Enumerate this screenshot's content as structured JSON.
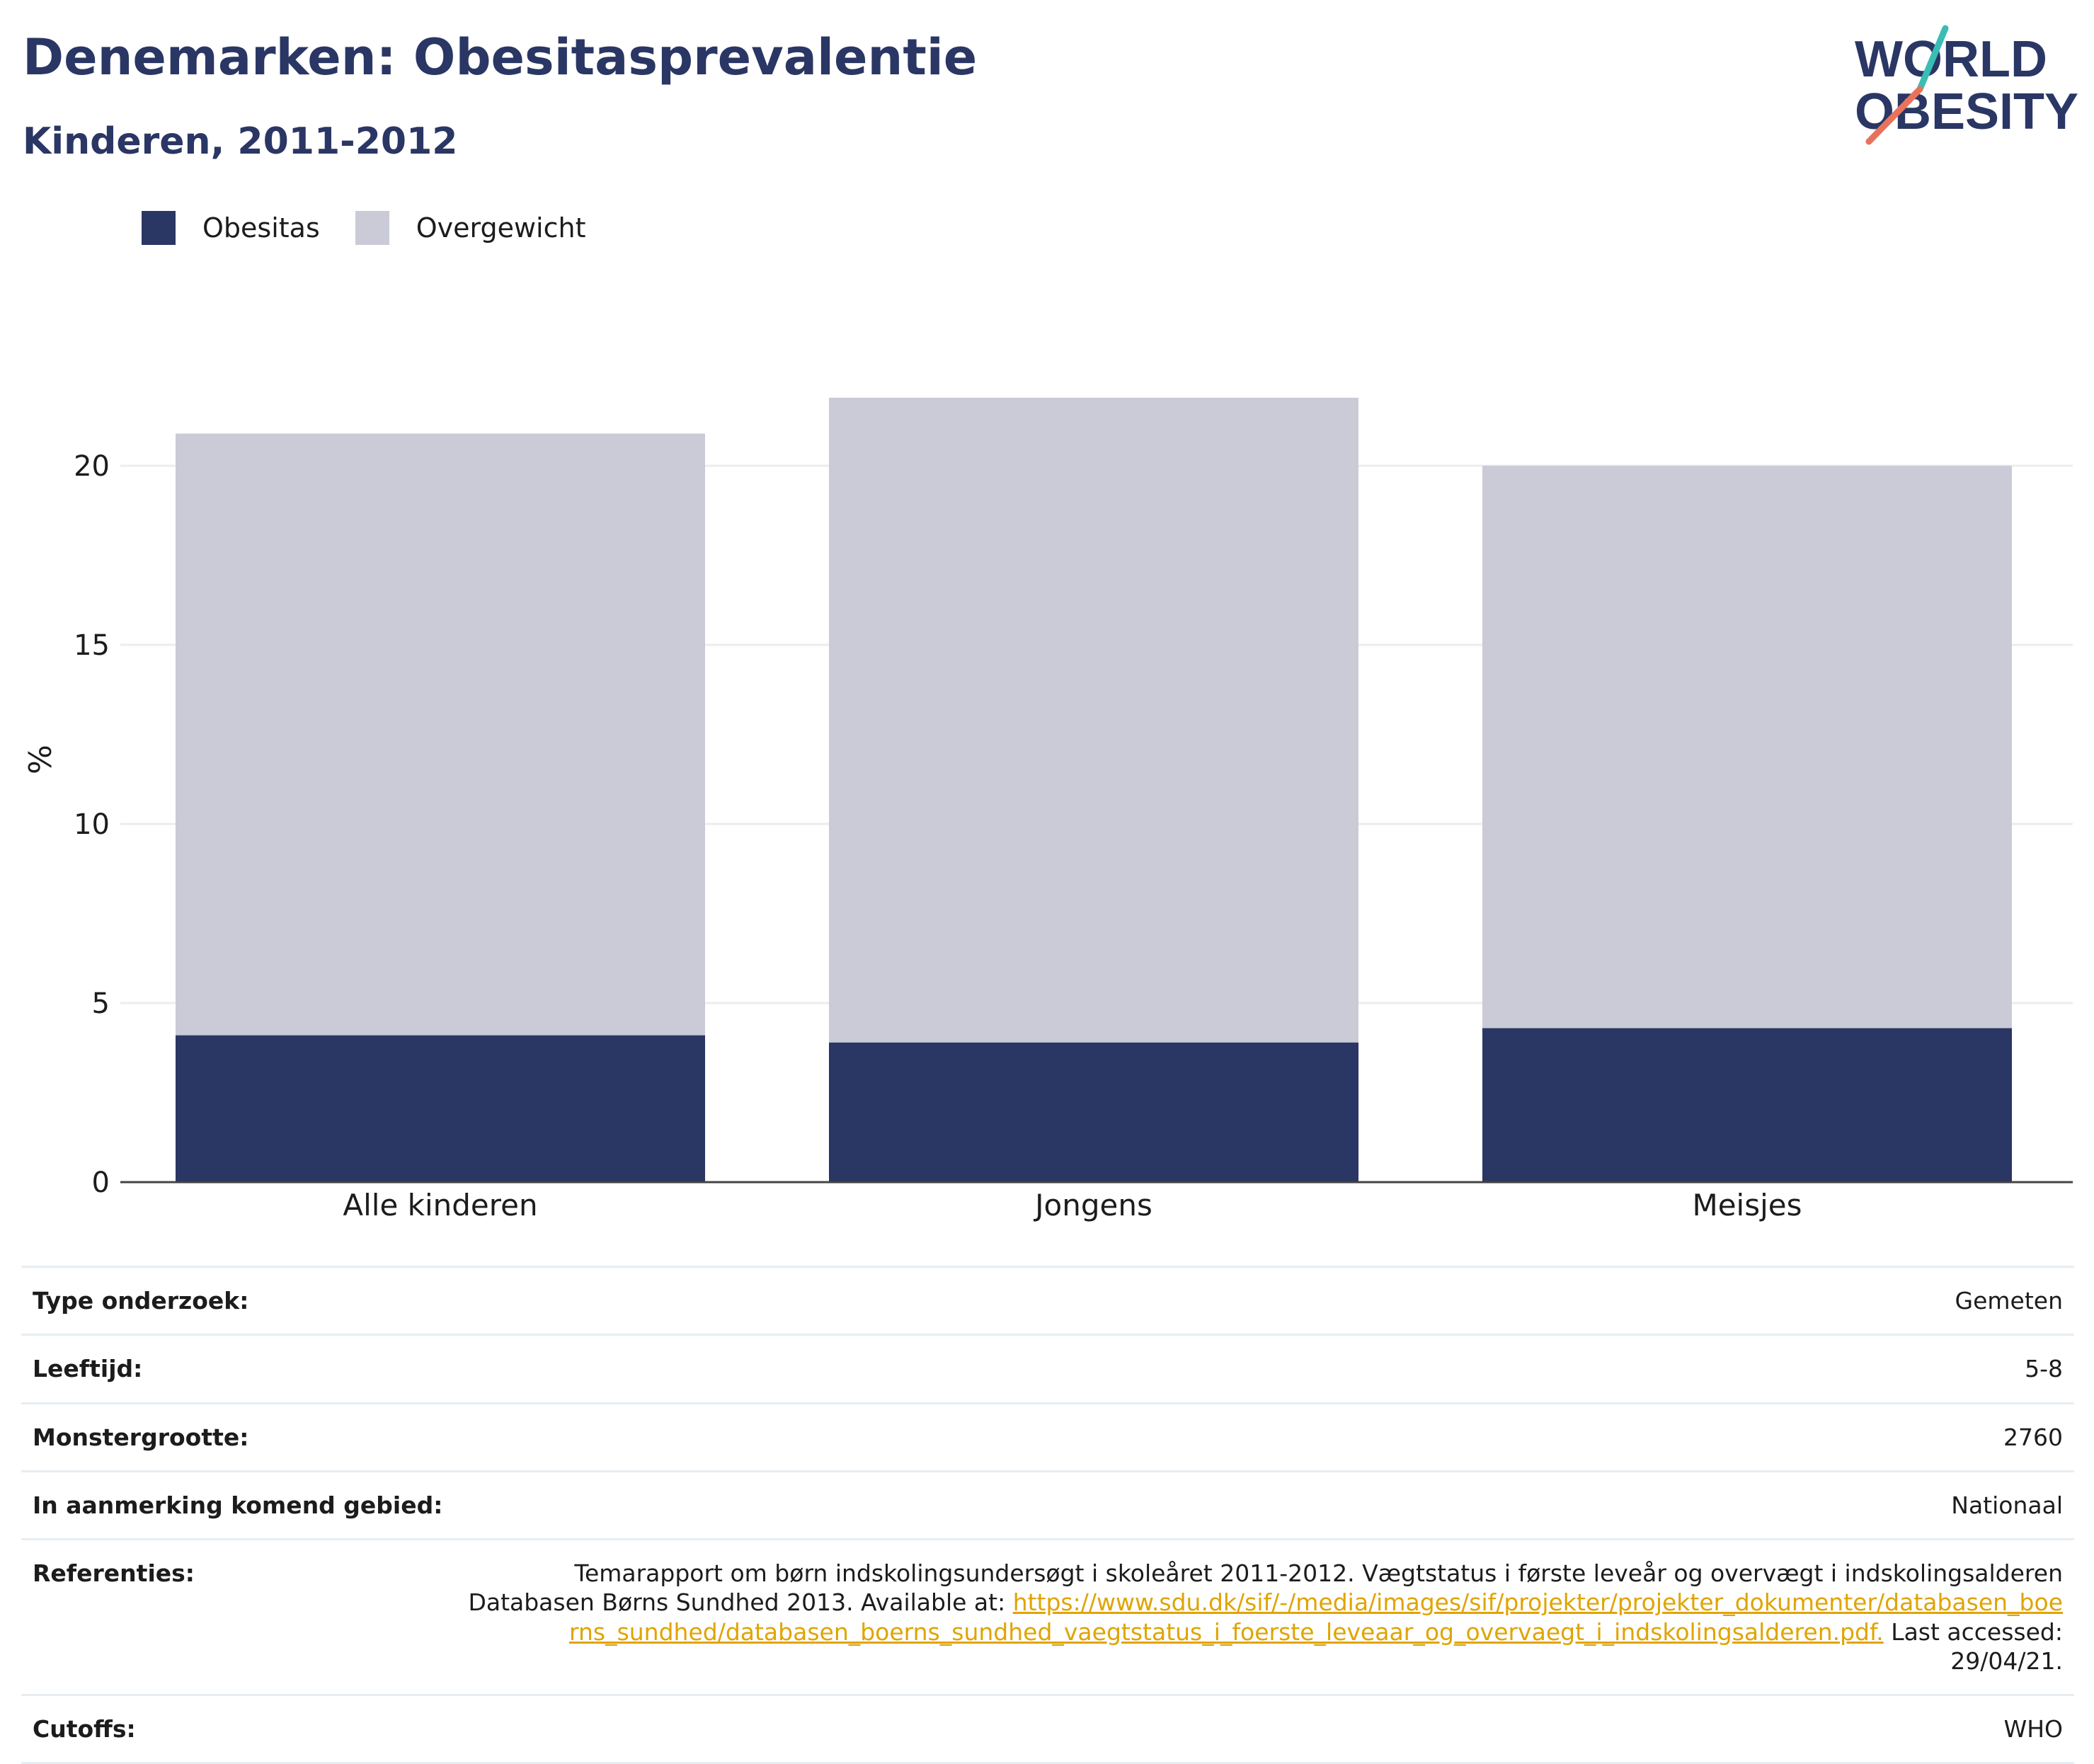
{
  "header": {
    "title": "Denemarken: Obesitasprevalentie",
    "subtitle": "Kinderen, 2011-2012"
  },
  "logo": {
    "line1": "WORLD",
    "line2": "OBESITY"
  },
  "colors": {
    "obesity": "#2a3664",
    "overweight": "#cacbd7",
    "logo_text": "#2a3664",
    "logo_slash_teal": "#39bdb4",
    "logo_slash_coral": "#e8735c",
    "link": "#e0a400"
  },
  "legend": {
    "items": [
      {
        "label": "Obesitas",
        "color": "#2a3664"
      },
      {
        "label": "Overgewicht",
        "color": "#cacbd7"
      }
    ]
  },
  "chart_data": {
    "type": "bar",
    "stacked": true,
    "title": "Denemarken: Obesitasprevalentie",
    "subtitle": "Kinderen, 2011-2012",
    "xlabel": "",
    "ylabel": "%",
    "categories": [
      "Alle kinderen",
      "Jongens",
      "Meisjes"
    ],
    "series": [
      {
        "name": "Obesitas",
        "values": [
          4.1,
          3.9,
          4.3
        ]
      },
      {
        "name": "Overgewicht",
        "values": [
          16.8,
          18.0,
          15.7
        ]
      }
    ],
    "ylim": [
      0,
      22
    ],
    "yticks": [
      0,
      5,
      10,
      15,
      20
    ],
    "grid": true,
    "legend_position": "top-left"
  },
  "info_table": [
    {
      "label": "Type onderzoek:",
      "value": "Gemeten"
    },
    {
      "label": "Leeftijd:",
      "value": "5-8"
    },
    {
      "label": "Monstergrootte:",
      "value": "2760"
    },
    {
      "label": "In aanmerking komend gebied:",
      "value": "Nationaal"
    },
    {
      "label": "Referenties:",
      "value": "Temarapport om børn indskolingsundersøgt i skoleåret 2011-2012. Vægtstatus i første leveår og overvægt i indskolingsalderen Databasen Børns Sundhed 2013. Available at: ",
      "link": "https://www.sdu.dk/sif/-/media/images/sif/projekter/projekter_dokumenter/databasen_boerns_sundhed/databasen_boerns_sundhed_vaegtstatus_i_foerste_leveaar_og_overvaegt_i_indskolingsalderen.pdf.",
      "suffix": " Last accessed: 29/04/21."
    },
    {
      "label": "Cutoffs:",
      "value": "WHO"
    }
  ]
}
